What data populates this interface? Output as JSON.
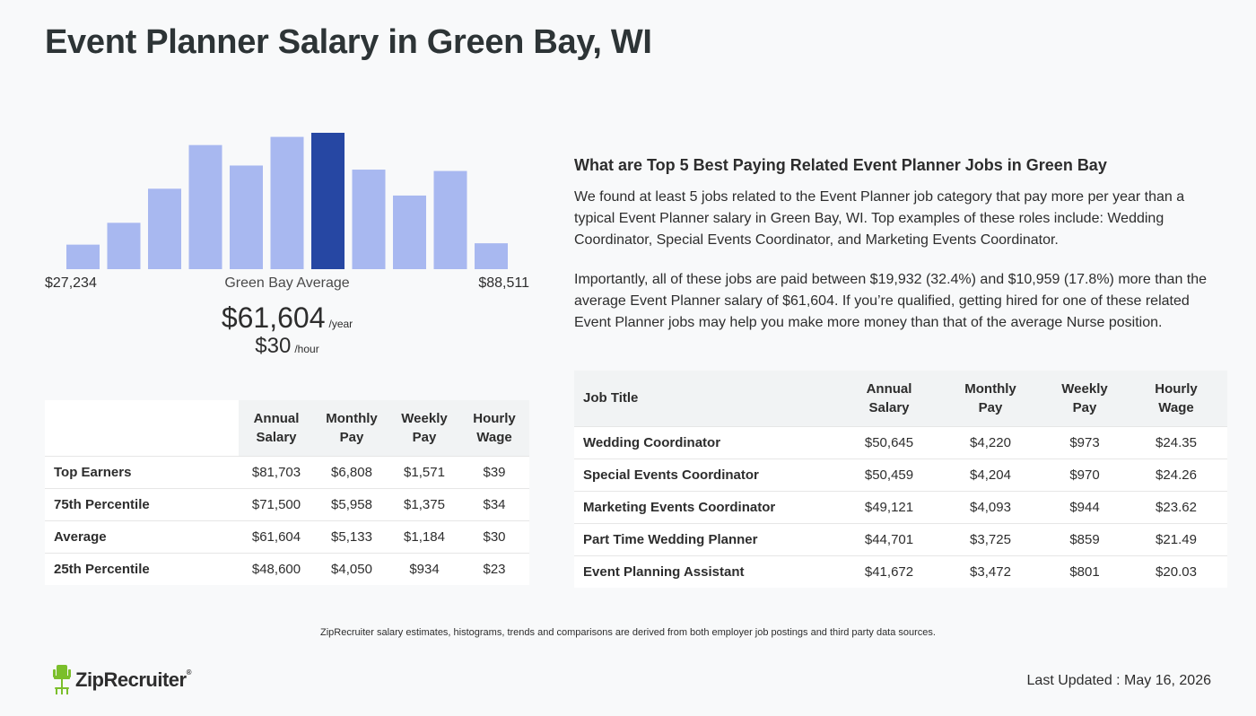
{
  "page": {
    "title": "Event Planner Salary in Green Bay, WI"
  },
  "chart_data": {
    "type": "bar",
    "bar_heights_relative": [
      0.18,
      0.34,
      0.59,
      0.91,
      0.76,
      0.97,
      1.0,
      0.73,
      0.54,
      0.72,
      0.19
    ],
    "highlight_index": 6,
    "colors": {
      "bar": "#a8b8f0",
      "highlight": "#2647a3"
    },
    "range_min_label": "$27,234",
    "range_mid_label": "Green Bay Average",
    "range_max_label": "$88,511"
  },
  "average": {
    "annual": "$61,604",
    "annual_unit": "/year",
    "hourly": "$30",
    "hourly_unit": "/hour"
  },
  "percentile_table": {
    "headers": [
      "Annual\nSalary",
      "Monthly\nPay",
      "Weekly\nPay",
      "Hourly\nWage"
    ],
    "rows": [
      {
        "label": "Top Earners",
        "values": [
          "$81,703",
          "$6,808",
          "$1,571",
          "$39"
        ]
      },
      {
        "label": "75th Percentile",
        "values": [
          "$71,500",
          "$5,958",
          "$1,375",
          "$34"
        ]
      },
      {
        "label": "Average",
        "values": [
          "$61,604",
          "$5,133",
          "$1,184",
          "$30"
        ]
      },
      {
        "label": "25th Percentile",
        "values": [
          "$48,600",
          "$4,050",
          "$934",
          "$23"
        ]
      }
    ]
  },
  "related": {
    "heading": "What are Top 5 Best Paying Related Event Planner Jobs in Green Bay",
    "paragraph1": "We found at least 5 jobs related to the Event Planner job category that pay more per year than a typical Event Planner salary in Green Bay, WI. Top examples of these roles include: Wedding Coordinator, Special Events Coordinator, and Marketing Events Coordinator.",
    "paragraph2": "Importantly, all of these jobs are paid between $19,932 (32.4%) and $10,959 (17.8%) more than the average Event Planner salary of $61,604. If you’re qualified, getting hired for one of these related Event Planner jobs may help you make more money than that of the average Nurse position."
  },
  "jobs_table": {
    "headers": [
      "Job Title",
      "Annual\nSalary",
      "Monthly\nPay",
      "Weekly\nPay",
      "Hourly\nWage"
    ],
    "rows": [
      {
        "title": "Wedding Coordinator",
        "values": [
          "$50,645",
          "$4,220",
          "$973",
          "$24.35"
        ]
      },
      {
        "title": "Special Events Coordinator",
        "values": [
          "$50,459",
          "$4,204",
          "$970",
          "$24.26"
        ]
      },
      {
        "title": "Marketing Events Coordinator",
        "values": [
          "$49,121",
          "$4,093",
          "$944",
          "$23.62"
        ]
      },
      {
        "title": "Part Time Wedding Planner",
        "values": [
          "$44,701",
          "$3,725",
          "$859",
          "$21.49"
        ]
      },
      {
        "title": "Event Planning Assistant",
        "values": [
          "$41,672",
          "$3,472",
          "$801",
          "$20.03"
        ]
      }
    ]
  },
  "footer": {
    "disclaimer": "ZipRecruiter salary estimates, histograms, trends and comparisons are derived from both employer job postings and third party data sources.",
    "logo_text": "ZipRecruiter",
    "logo_reg": "®",
    "last_updated": "Last Updated : May 16, 2026"
  }
}
